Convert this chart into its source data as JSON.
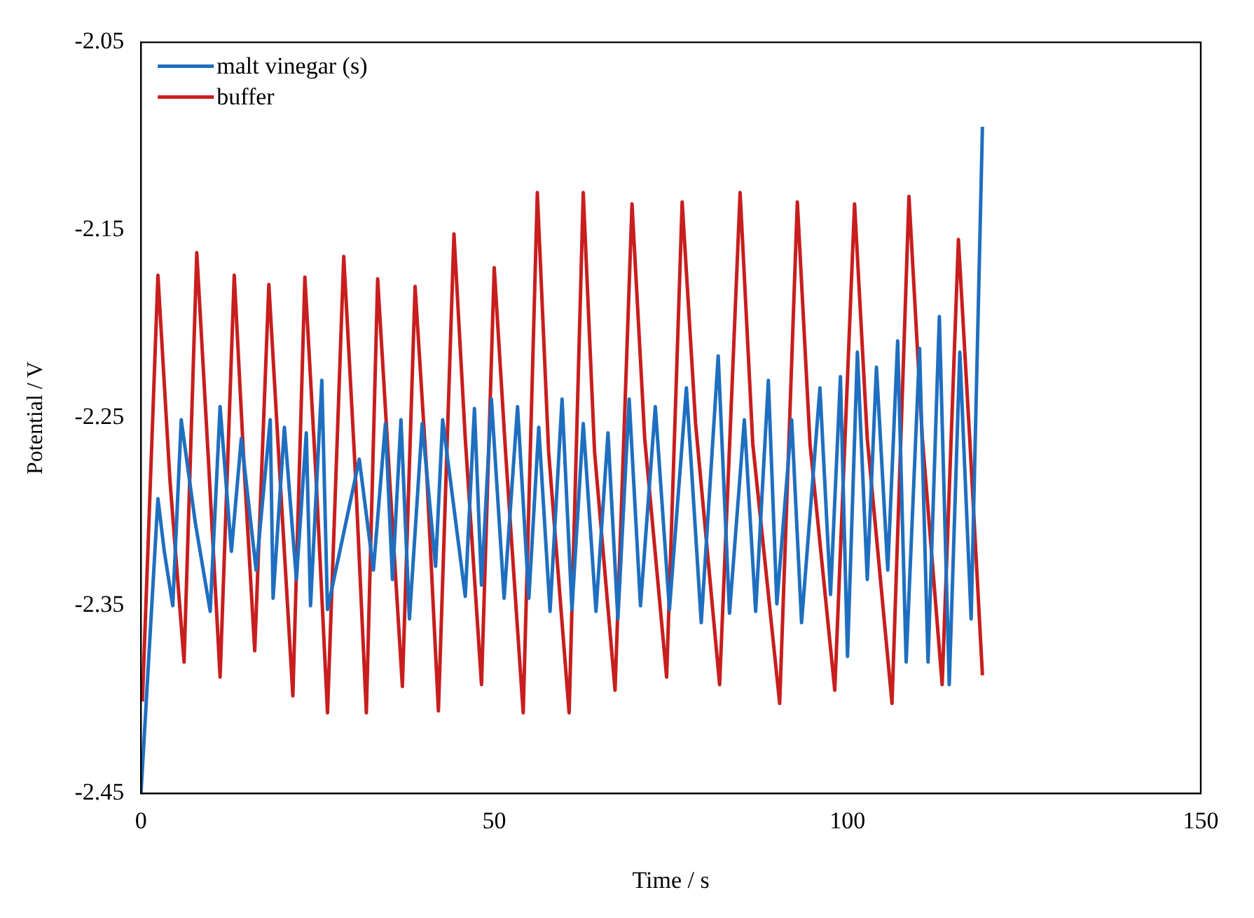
{
  "chart_data": {
    "type": "line",
    "xlabel": "Time / s",
    "ylabel": "Potential / V",
    "xlim": [
      0,
      150
    ],
    "xticks": [
      0,
      50,
      100,
      150
    ],
    "ylim": [
      -2.45,
      -2.05
    ],
    "yticks": [
      -2.45,
      -2.35,
      -2.25,
      -2.15,
      -2.05
    ],
    "grid": false,
    "legend": "top left",
    "marker": "none",
    "line_style": "solid",
    "series": [
      {
        "name": "malt vinegar (s)",
        "color": "#1f6fc0",
        "x": [
          0,
          2.4,
          3.3,
          4.5,
          5.7,
          7.7,
          9.8,
          11.2,
          12.8,
          14.2,
          16.3,
          18.3,
          18.7,
          20.3,
          22.0,
          23.4,
          24.0,
          25.6,
          26.4,
          30.9,
          32.9,
          34.6,
          35.6,
          36.8,
          38.0,
          39.8,
          41.7,
          42.7,
          45.9,
          47.2,
          48.2,
          49.6,
          51.4,
          53.3,
          54.9,
          56.3,
          57.9,
          59.6,
          61.0,
          62.6,
          64.4,
          66.1,
          67.5,
          69.1,
          70.7,
          72.8,
          74.8,
          77.2,
          79.3,
          81.7,
          83.3,
          85.4,
          87.0,
          88.8,
          90.0,
          92.1,
          93.5,
          96.1,
          97.6,
          99.0,
          100.0,
          101.4,
          102.8,
          104.1,
          105.7,
          107.1,
          108.3,
          110.2,
          111.4,
          113.0,
          114.4,
          115.9,
          117.5,
          119.1
        ],
        "values": [
          -2.45,
          -2.293,
          -2.321,
          -2.35,
          -2.251,
          -2.306,
          -2.353,
          -2.244,
          -2.321,
          -2.261,
          -2.331,
          -2.251,
          -2.346,
          -2.255,
          -2.336,
          -2.258,
          -2.35,
          -2.23,
          -2.352,
          -2.272,
          -2.331,
          -2.253,
          -2.336,
          -2.251,
          -2.357,
          -2.253,
          -2.329,
          -2.251,
          -2.345,
          -2.245,
          -2.339,
          -2.24,
          -2.346,
          -2.244,
          -2.346,
          -2.255,
          -2.353,
          -2.24,
          -2.352,
          -2.253,
          -2.353,
          -2.258,
          -2.357,
          -2.24,
          -2.35,
          -2.244,
          -2.352,
          -2.234,
          -2.359,
          -2.217,
          -2.354,
          -2.251,
          -2.353,
          -2.23,
          -2.349,
          -2.251,
          -2.359,
          -2.234,
          -2.344,
          -2.228,
          -2.377,
          -2.215,
          -2.336,
          -2.223,
          -2.331,
          -2.209,
          -2.38,
          -2.213,
          -2.38,
          -2.196,
          -2.392,
          -2.215,
          -2.357,
          -2.095
        ]
      },
      {
        "name": "buffer",
        "color": "#c81e1e",
        "x": [
          0.2,
          2.4,
          4.1,
          6.1,
          7.9,
          9.6,
          11.2,
          13.2,
          14.6,
          16.1,
          18.1,
          19.7,
          21.5,
          23.2,
          24.8,
          26.4,
          28.7,
          30.3,
          31.9,
          33.5,
          35.2,
          37.0,
          38.8,
          40.4,
          42.1,
          44.3,
          45.9,
          48.2,
          50.0,
          51.6,
          54.1,
          56.1,
          57.7,
          60.6,
          62.6,
          64.2,
          67.1,
          69.5,
          71.3,
          74.4,
          76.6,
          78.5,
          81.9,
          84.8,
          86.6,
          90.4,
          92.9,
          94.7,
          98.2,
          101.0,
          102.8,
          106.3,
          108.7,
          110.6,
          113.4,
          115.7,
          117.3,
          119.1
        ],
        "values": [
          -2.401,
          -2.174,
          -2.283,
          -2.38,
          -2.162,
          -2.276,
          -2.388,
          -2.174,
          -2.276,
          -2.374,
          -2.179,
          -2.283,
          -2.398,
          -2.175,
          -2.283,
          -2.407,
          -2.164,
          -2.276,
          -2.407,
          -2.176,
          -2.283,
          -2.393,
          -2.18,
          -2.276,
          -2.406,
          -2.152,
          -2.261,
          -2.392,
          -2.17,
          -2.268,
          -2.407,
          -2.13,
          -2.268,
          -2.407,
          -2.13,
          -2.268,
          -2.395,
          -2.136,
          -2.261,
          -2.388,
          -2.135,
          -2.253,
          -2.392,
          -2.13,
          -2.264,
          -2.402,
          -2.135,
          -2.264,
          -2.395,
          -2.136,
          -2.261,
          -2.402,
          -2.132,
          -2.261,
          -2.392,
          -2.155,
          -2.261,
          -2.387
        ]
      }
    ]
  }
}
